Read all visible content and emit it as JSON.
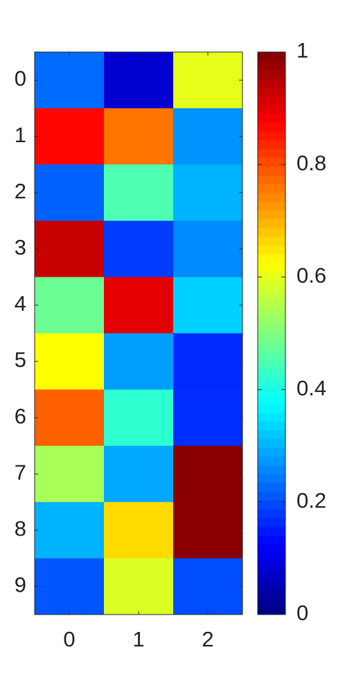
{
  "chart_data": {
    "type": "heatmap",
    "colormap": "jet",
    "x_categories": [
      "0",
      "1",
      "2"
    ],
    "y_categories": [
      "0",
      "1",
      "2",
      "3",
      "4",
      "5",
      "6",
      "7",
      "8",
      "9"
    ],
    "values": [
      [
        0.23,
        0.08,
        0.6
      ],
      [
        0.87,
        0.76,
        0.27
      ],
      [
        0.22,
        0.45,
        0.3
      ],
      [
        0.93,
        0.185,
        0.26
      ],
      [
        0.48,
        0.9,
        0.33
      ],
      [
        0.625,
        0.28,
        0.165
      ],
      [
        0.78,
        0.42,
        0.17
      ],
      [
        0.54,
        0.29,
        0.99
      ],
      [
        0.3,
        0.66,
        0.99
      ],
      [
        0.21,
        0.59,
        0.2
      ]
    ],
    "clim": [
      0,
      1
    ],
    "cticks": [
      0,
      0.2,
      0.4,
      0.6,
      0.8,
      1
    ]
  }
}
